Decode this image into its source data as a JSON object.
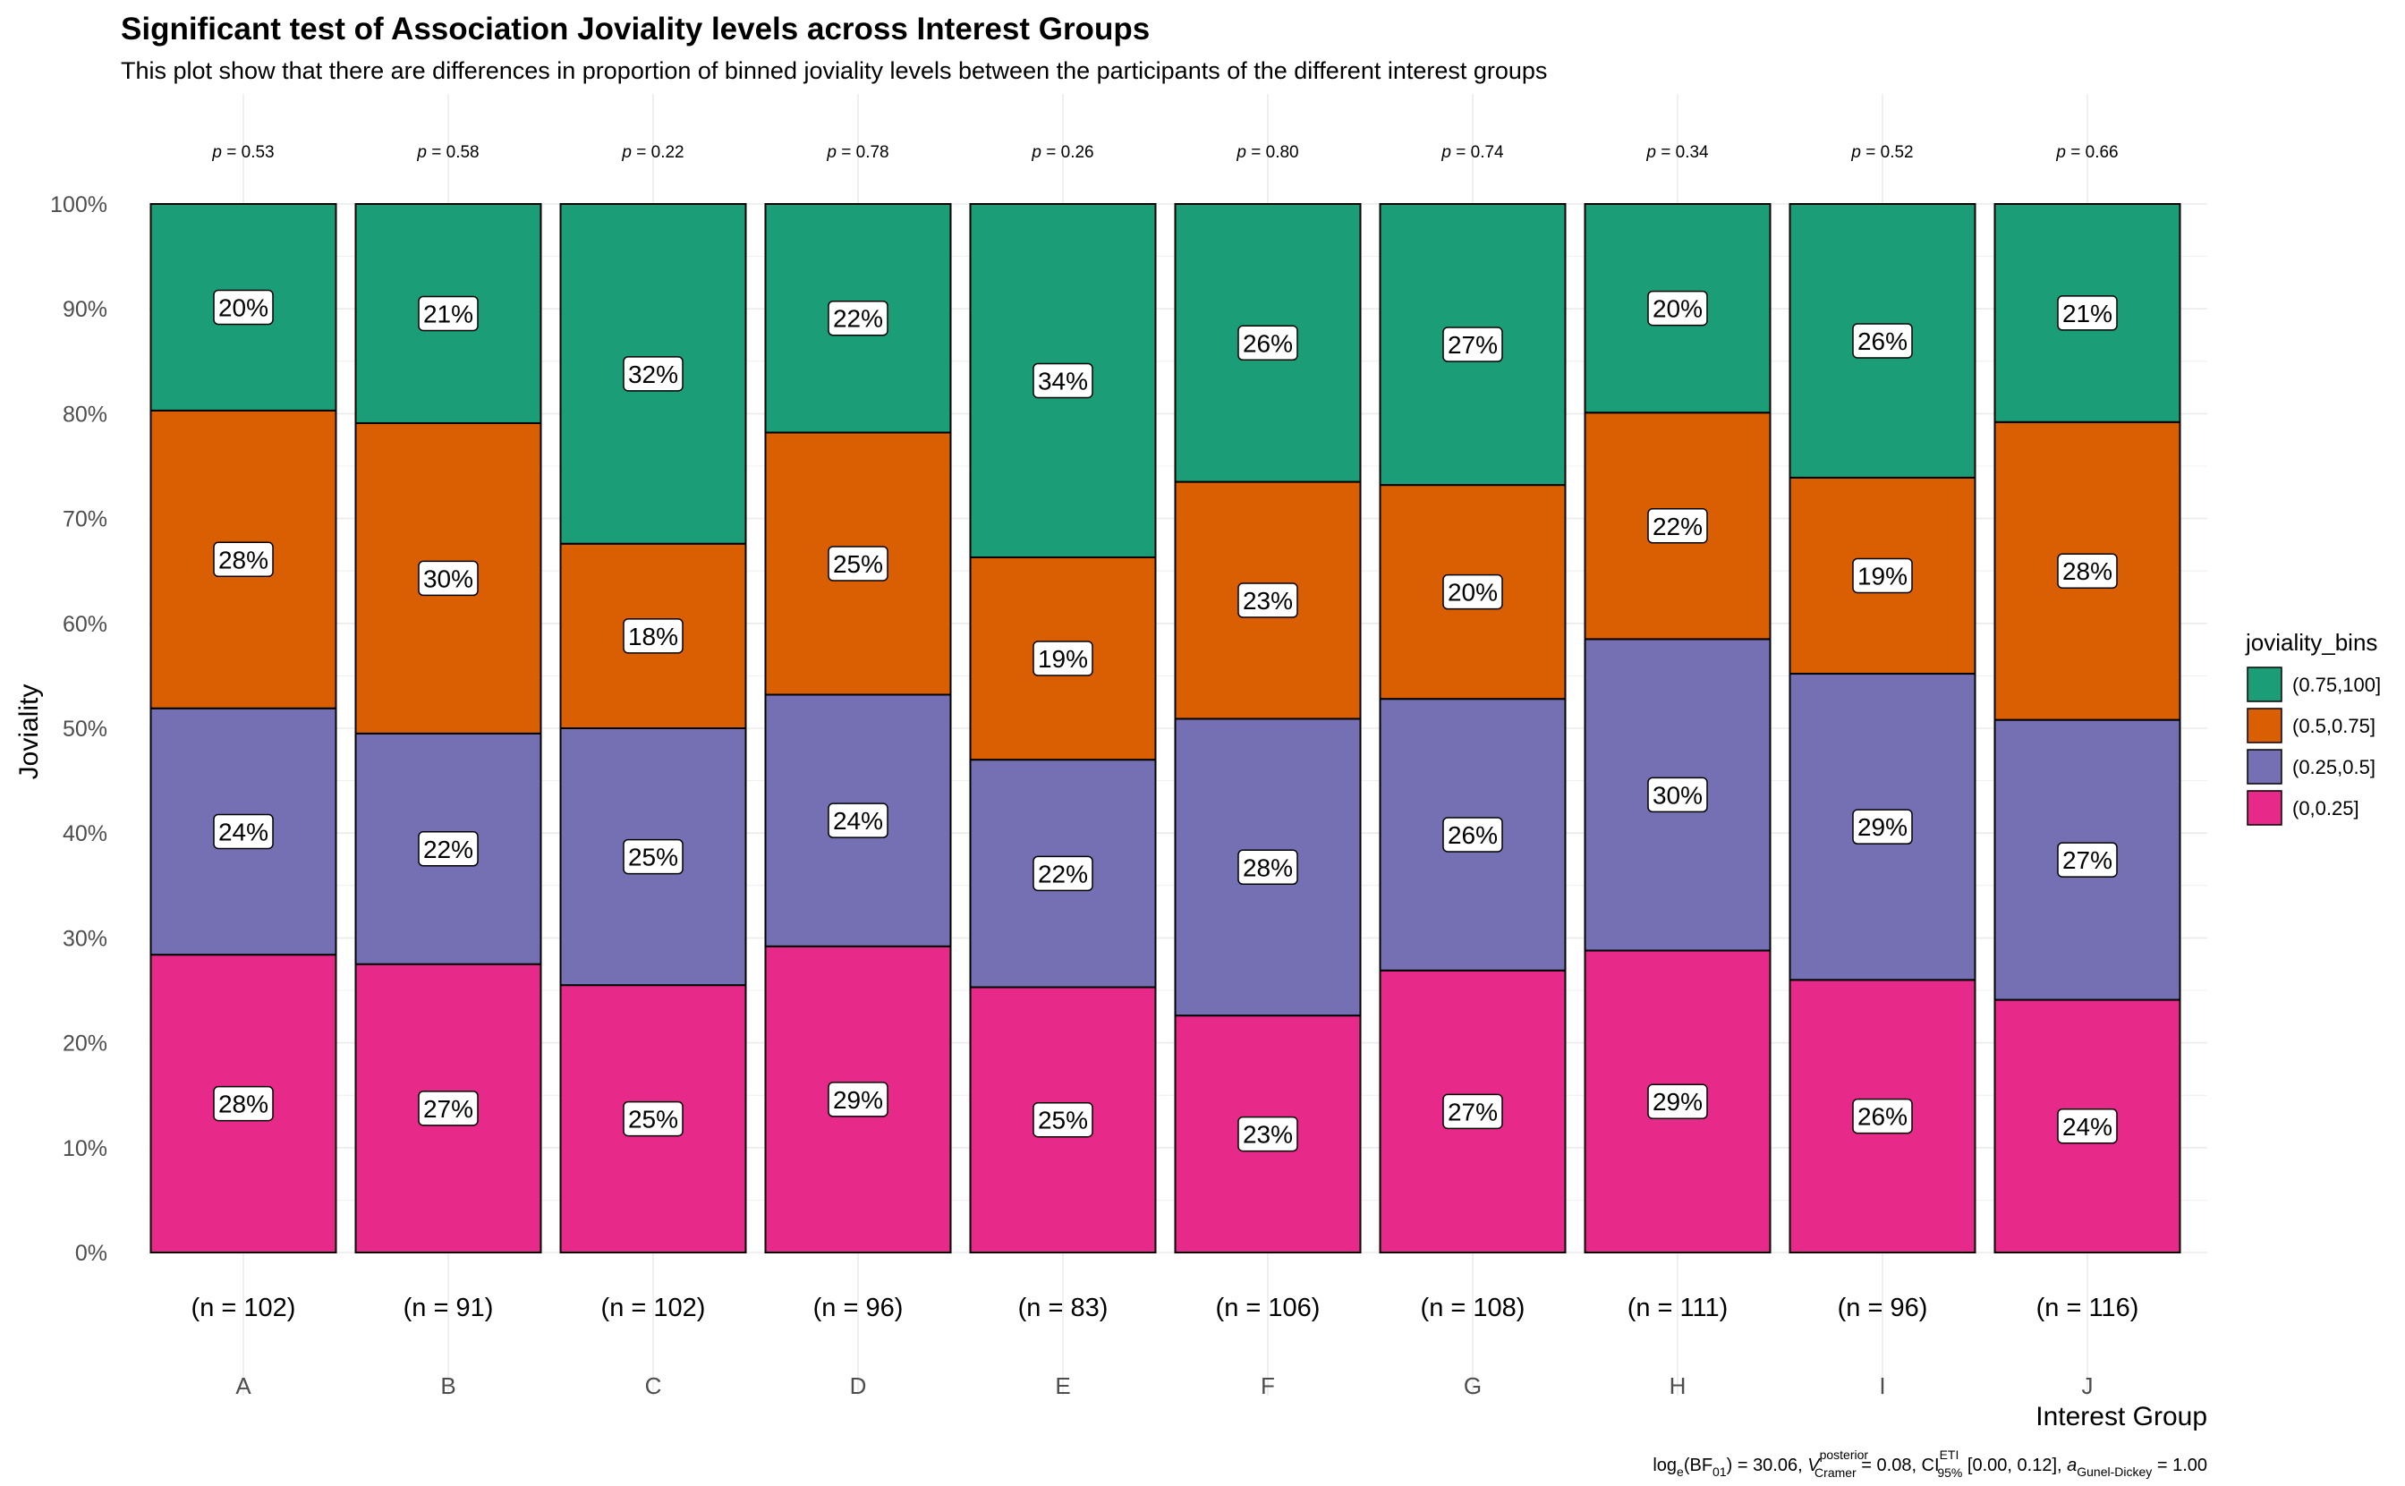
{
  "chart_data": {
    "type": "bar",
    "stacked": true,
    "percent": true,
    "title": "Significant test of Association Joviality levels across Interest Groups",
    "subtitle": "This plot show that there are differences in proportion of binned joviality levels between the participants of the different interest groups",
    "xlabel": "Interest Group",
    "ylabel": "Joviality",
    "ylim": [
      0,
      100
    ],
    "yticks": [
      "0%",
      "10%",
      "20%",
      "30%",
      "40%",
      "50%",
      "60%",
      "70%",
      "80%",
      "90%",
      "100%"
    ],
    "categories": [
      "A",
      "B",
      "C",
      "D",
      "E",
      "F",
      "G",
      "H",
      "I",
      "J"
    ],
    "p_values": [
      "p = 0.53",
      "p = 0.58",
      "p = 0.22",
      "p = 0.78",
      "p = 0.26",
      "p = 0.80",
      "p = 0.74",
      "p = 0.34",
      "p = 0.52",
      "p = 0.66"
    ],
    "n_labels": [
      "(n = 102)",
      "(n = 91)",
      "(n = 102)",
      "(n = 96)",
      "(n = 83)",
      "(n = 106)",
      "(n = 108)",
      "(n = 111)",
      "(n = 96)",
      "(n = 116)"
    ],
    "legend_title": "joviality_bins",
    "legend_position": "right",
    "grid": true,
    "series": [
      {
        "name": "(0,0.25]",
        "color": "#E7298A",
        "values": [
          28.4,
          27.5,
          25.5,
          29.2,
          25.3,
          22.6,
          26.9,
          28.8,
          26.0,
          24.1
        ],
        "labels": [
          "28%",
          "27%",
          "25%",
          "29%",
          "25%",
          "23%",
          "27%",
          "29%",
          "26%",
          "24%"
        ]
      },
      {
        "name": "(0.25,0.5]",
        "color": "#7570B3",
        "values": [
          23.5,
          22.0,
          24.5,
          24.0,
          21.7,
          28.3,
          25.9,
          29.7,
          29.2,
          26.7
        ],
        "labels": [
          "24%",
          "22%",
          "25%",
          "24%",
          "22%",
          "28%",
          "26%",
          "30%",
          "29%",
          "27%"
        ]
      },
      {
        "name": "(0.5,0.75]",
        "color": "#D95F02",
        "values": [
          28.4,
          29.6,
          17.6,
          25.0,
          19.3,
          22.6,
          20.4,
          21.6,
          18.7,
          28.4
        ],
        "labels": [
          "28%",
          "30%",
          "18%",
          "25%",
          "19%",
          "23%",
          "20%",
          "22%",
          "19%",
          "28%"
        ]
      },
      {
        "name": "(0.75,100]",
        "color": "#1B9E77",
        "values": [
          19.7,
          20.9,
          32.4,
          21.8,
          33.7,
          26.5,
          26.8,
          19.9,
          26.1,
          20.8
        ],
        "labels": [
          "20%",
          "21%",
          "32%",
          "22%",
          "34%",
          "26%",
          "27%",
          "20%",
          "26%",
          "21%"
        ]
      }
    ],
    "caption": {
      "log": "log",
      "log_sub": "e",
      "bf": "(BF",
      "bf_sub": "01",
      "bf_val": ") = 30.06, ",
      "v": "V",
      "v_sup": "posterior",
      "v_sub": "Cramer",
      "v_val": " = 0.08, CI",
      "ci_sup": "ETI",
      "ci_sub": "95%",
      "ci_val": " [0.00, 0.12], ",
      "a": "a",
      "a_sub": "Gunel-Dickey",
      "a_val": " = 1.00"
    }
  }
}
